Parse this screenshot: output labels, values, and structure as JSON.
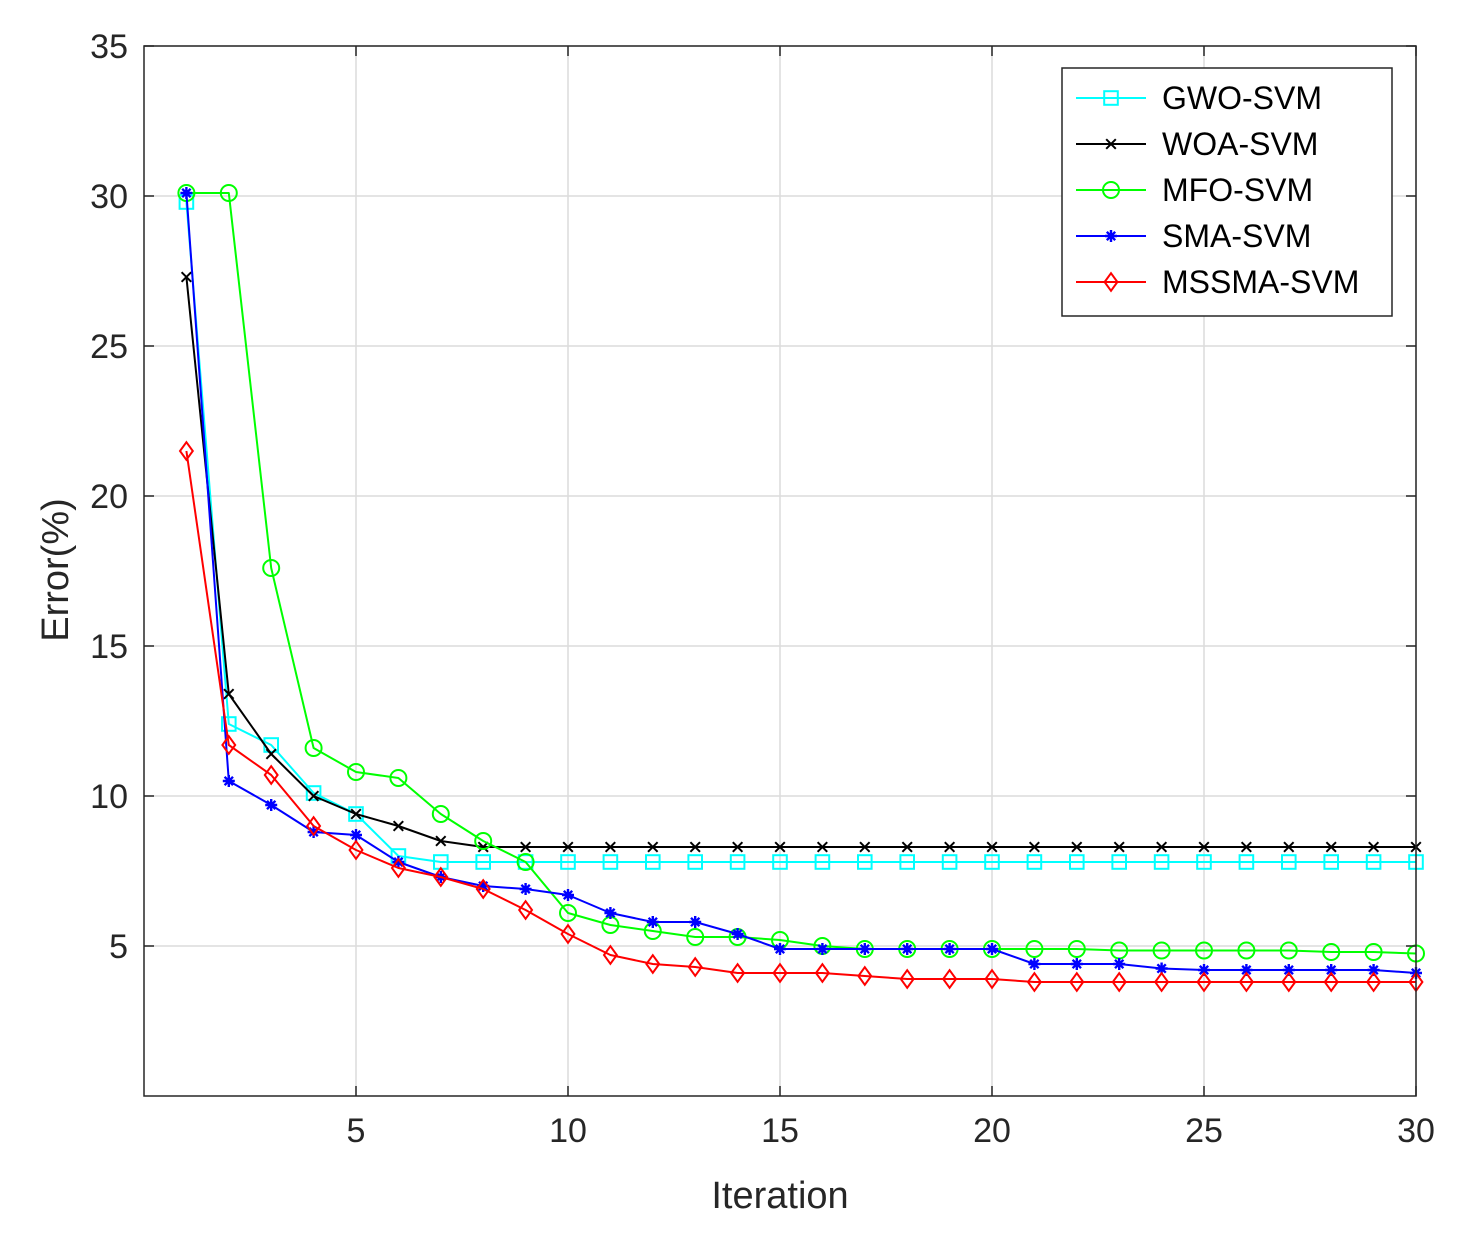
{
  "chart_data": {
    "type": "line",
    "title": "",
    "xlabel": "Iteration",
    "ylabel": "Error(%)",
    "xlim": [
      0,
      30
    ],
    "ylim": [
      0,
      35
    ],
    "xticks": [
      5,
      10,
      15,
      20,
      25,
      30
    ],
    "yticks": [
      5,
      10,
      15,
      20,
      25,
      30,
      35
    ],
    "xtick_labels": [
      "5",
      "10",
      "15",
      "20",
      "25",
      "30"
    ],
    "ytick_labels": [
      "5",
      "10",
      "15",
      "20",
      "25",
      "30",
      "35"
    ],
    "grid": true,
    "legend_position": "top-right",
    "x": [
      1,
      2,
      3,
      4,
      5,
      6,
      7,
      8,
      9,
      10,
      11,
      12,
      13,
      14,
      15,
      16,
      17,
      18,
      19,
      20,
      21,
      22,
      23,
      24,
      25,
      26,
      27,
      28,
      29,
      30
    ],
    "series": [
      {
        "name": "GWO-SVM",
        "color": "#00ffff",
        "marker": "square",
        "values": [
          29.8,
          12.4,
          11.7,
          10.1,
          9.4,
          8.0,
          7.8,
          7.8,
          7.8,
          7.8,
          7.8,
          7.8,
          7.8,
          7.8,
          7.8,
          7.8,
          7.8,
          7.8,
          7.8,
          7.8,
          7.8,
          7.8,
          7.8,
          7.8,
          7.8,
          7.8,
          7.8,
          7.8,
          7.8,
          7.8
        ]
      },
      {
        "name": "WOA-SVM",
        "color": "#000000",
        "marker": "x",
        "values": [
          27.3,
          13.4,
          11.4,
          10.0,
          9.4,
          9.0,
          8.5,
          8.3,
          8.3,
          8.3,
          8.3,
          8.3,
          8.3,
          8.3,
          8.3,
          8.3,
          8.3,
          8.3,
          8.3,
          8.3,
          8.3,
          8.3,
          8.3,
          8.3,
          8.3,
          8.3,
          8.3,
          8.3,
          8.3,
          8.3
        ]
      },
      {
        "name": "MFO-SVM",
        "color": "#00ff00",
        "marker": "circle",
        "values": [
          30.1,
          30.1,
          17.6,
          11.6,
          10.8,
          10.6,
          9.4,
          8.5,
          7.8,
          6.1,
          5.7,
          5.5,
          5.3,
          5.3,
          5.2,
          5.0,
          4.9,
          4.9,
          4.9,
          4.9,
          4.9,
          4.9,
          4.85,
          4.85,
          4.85,
          4.85,
          4.85,
          4.8,
          4.8,
          4.75
        ]
      },
      {
        "name": "SMA-SVM",
        "color": "#0000ff",
        "marker": "asterisk",
        "values": [
          30.1,
          10.5,
          9.7,
          8.8,
          8.7,
          7.8,
          7.3,
          7.0,
          6.9,
          6.7,
          6.1,
          5.8,
          5.8,
          5.4,
          4.9,
          4.9,
          4.9,
          4.9,
          4.9,
          4.9,
          4.4,
          4.4,
          4.4,
          4.25,
          4.2,
          4.2,
          4.2,
          4.2,
          4.2,
          4.1
        ]
      },
      {
        "name": "MSSMA-SVM",
        "color": "#ff0000",
        "marker": "diamond",
        "values": [
          21.5,
          11.7,
          10.7,
          9.0,
          8.2,
          7.6,
          7.3,
          6.9,
          6.2,
          5.4,
          4.7,
          4.4,
          4.3,
          4.1,
          4.1,
          4.1,
          4.0,
          3.9,
          3.9,
          3.9,
          3.8,
          3.8,
          3.8,
          3.8,
          3.8,
          3.8,
          3.8,
          3.8,
          3.8,
          3.8
        ]
      }
    ]
  }
}
